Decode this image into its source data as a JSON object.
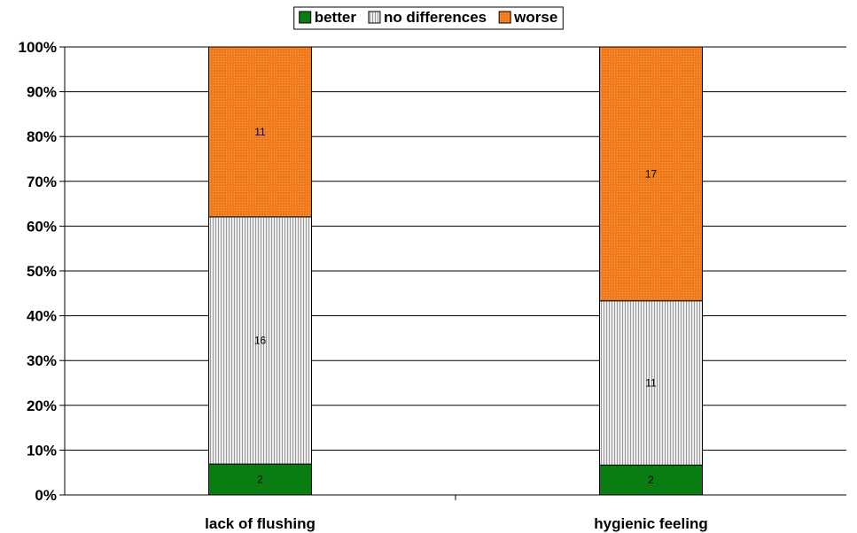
{
  "chart_data": {
    "type": "bar",
    "stacking": "percent",
    "categories": [
      "lack of flushing",
      "hygienic feeling"
    ],
    "series": [
      {
        "name": "better",
        "values": [
          2,
          2
        ],
        "color": "#0a7d12",
        "pattern": "solid"
      },
      {
        "name": "no differences",
        "values": [
          16,
          11
        ],
        "color": "#d9d9d9",
        "pattern": "vertical-lines"
      },
      {
        "name": "worse",
        "values": [
          11,
          17
        ],
        "color": "#f07a1a",
        "pattern": "dots"
      }
    ],
    "yticks": [
      "0%",
      "10%",
      "20%",
      "30%",
      "40%",
      "50%",
      "60%",
      "70%",
      "80%",
      "90%",
      "100%"
    ],
    "ylim": [
      0,
      100
    ],
    "grid": true,
    "legend": "top-center",
    "title": "",
    "xlabel": "",
    "ylabel": ""
  }
}
